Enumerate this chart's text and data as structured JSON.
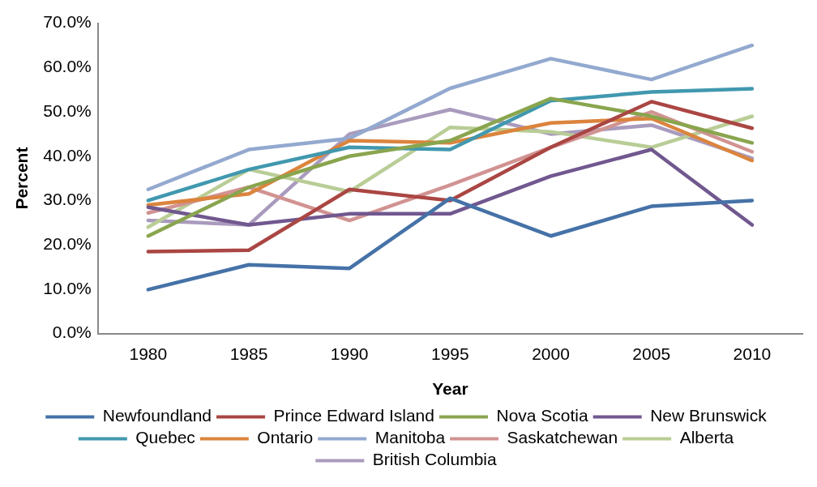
{
  "chart_data": {
    "type": "line",
    "xlabel": "Year",
    "ylabel": "Percent",
    "categories": [
      "1980",
      "1985",
      "1990",
      "1995",
      "2000",
      "2005",
      "2010"
    ],
    "ylim": [
      0,
      70
    ],
    "yticks": [
      {
        "value": 0,
        "label": "0.0%"
      },
      {
        "value": 10,
        "label": "10.0%"
      },
      {
        "value": 20,
        "label": "20.0%"
      },
      {
        "value": 30,
        "label": "30.0%"
      },
      {
        "value": 40,
        "label": "40.0%"
      },
      {
        "value": 50,
        "label": "50.0%"
      },
      {
        "value": 60,
        "label": "60.0%"
      },
      {
        "value": 70,
        "label": "70.0%"
      }
    ],
    "grid": false,
    "legend": "bottom",
    "marker": "none",
    "line_style": "solid",
    "series": [
      {
        "name": "Newfoundland",
        "color": "#4572a7",
        "values": [
          9.9,
          15.5,
          14.7,
          30.5,
          22,
          28.7,
          30
        ]
      },
      {
        "name": "Prince Edward Island",
        "color": "#aa4643",
        "values": [
          18.5,
          18.8,
          32.5,
          30,
          42,
          52.3,
          46.3
        ]
      },
      {
        "name": "Nova Scotia",
        "color": "#89a54e",
        "values": [
          22,
          33,
          40,
          43.5,
          53,
          49,
          43
        ]
      },
      {
        "name": "New Brunswick",
        "color": "#71588f",
        "values": [
          28.5,
          24.5,
          27,
          27,
          35.5,
          41.5,
          24.5
        ]
      },
      {
        "name": "Quebec",
        "color": "#4198af",
        "values": [
          30,
          37,
          42,
          41.5,
          52.5,
          54.5,
          55.2
        ]
      },
      {
        "name": "Ontario",
        "color": "#db843d",
        "values": [
          29,
          31.5,
          43.5,
          43,
          47.5,
          48.5,
          39
        ]
      },
      {
        "name": "Manitoba",
        "color": "#93a9cf",
        "values": [
          32.5,
          41.5,
          44,
          55.3,
          62,
          57.3,
          65
        ]
      },
      {
        "name": "Saskatchewan",
        "color": "#d19392",
        "values": [
          27.2,
          33,
          25.5,
          33.5,
          42,
          50,
          41
        ]
      },
      {
        "name": "Alberta",
        "color": "#b9cd96",
        "values": [
          24,
          37,
          32,
          46.5,
          45.5,
          42,
          49
        ]
      },
      {
        "name": "British Columbia",
        "color": "#a99bbd",
        "values": [
          25.5,
          24.5,
          45,
          50.5,
          45,
          47,
          39.5
        ]
      }
    ]
  }
}
